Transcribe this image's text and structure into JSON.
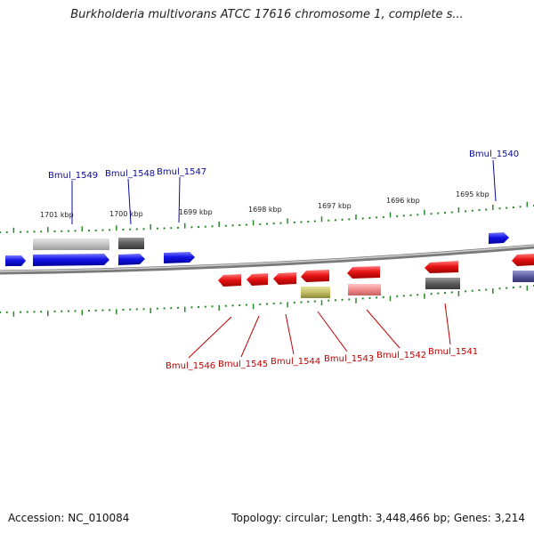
{
  "title": "Burkholderia multivorans ATCC 17616 chromosome 1, complete s...",
  "accession": "Accession: NC_010084",
  "topology": "Topology: circular; Length: 3,448,466 bp; Genes: 3,214",
  "kbp_labels": [
    "1701 kbp",
    "1700 kbp",
    "1699 kbp",
    "1698 kbp",
    "1697 kbp",
    "1696 kbp",
    "1695 kbp"
  ],
  "forward_genes": [
    {
      "name": "Bmul_1549"
    },
    {
      "name": "Bmul_1548"
    },
    {
      "name": "Bmul_1547"
    },
    {
      "name": "Bmul_1540"
    }
  ],
  "reverse_genes": [
    {
      "name": "Bmul_1546"
    },
    {
      "name": "Bmul_1545"
    },
    {
      "name": "Bmul_1544"
    },
    {
      "name": "Bmul_1543"
    },
    {
      "name": "Bmul_1542"
    },
    {
      "name": "Bmul_1541"
    }
  ],
  "colors": {
    "forward_gene": "#1010e0",
    "reverse_gene": "#e01010",
    "backbone": "#8c8c8c",
    "tick": "#2a8a2a",
    "label_forward": "#0a0a9a",
    "label_reverse": "#c00000"
  }
}
